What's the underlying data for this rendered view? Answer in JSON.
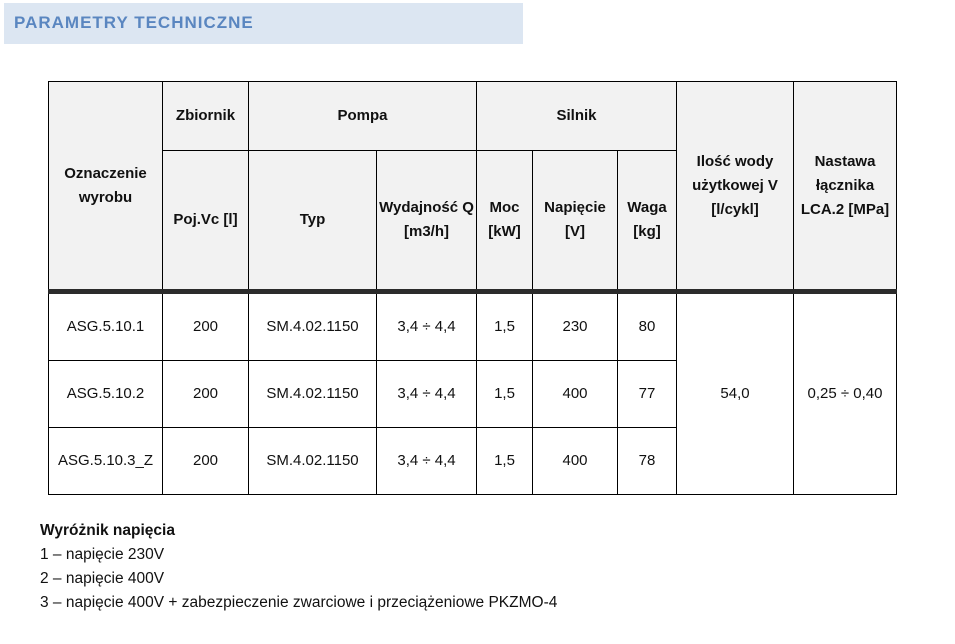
{
  "section_title": "PARAMETRY TECHNICZNE",
  "table": {
    "headers": {
      "product": "Oznaczenie wyrobu",
      "tank": "Zbiornik",
      "tank_capacity": "Poj.Vc [l]",
      "pump": "Pompa",
      "pump_type": "Typ",
      "pump_output": "Wydajność Q [m3/h]",
      "motor": "Silnik",
      "power": "Moc [kW]",
      "voltage": "Napięcie [V]",
      "weight": "Waga [kg]",
      "water": "Ilość wody użytkowej V [l/cykl]",
      "switch": "Nastawa łącznika LCA.2 [MPa]"
    },
    "rows": [
      {
        "product": "ASG.5.10.1",
        "capacity": "200",
        "type": "SM.4.02.1150",
        "output": "3,4 ÷ 4,4",
        "power": "1,5",
        "voltage": "230",
        "weight": "80"
      },
      {
        "product": "ASG.5.10.2",
        "capacity": "200",
        "type": "SM.4.02.1150",
        "output": "3,4 ÷ 4,4",
        "power": "1,5",
        "voltage": "400",
        "weight": "77"
      },
      {
        "product": "ASG.5.10.3_Z",
        "capacity": "200",
        "type": "SM.4.02.1150",
        "output": "3,4 ÷ 4,4",
        "power": "1,5",
        "voltage": "400",
        "weight": "78"
      }
    ],
    "water_value": "54,0",
    "switch_value": "0,25 ÷ 0,40"
  },
  "legend": {
    "title": "Wyróżnik napięcia",
    "items": [
      "1 – napięcie 230V",
      "2 – napięcie 400V",
      "3 – napięcie 400V + zabezpieczenie zwarciowe i przeciążeniowe PKZMO-4"
    ]
  }
}
